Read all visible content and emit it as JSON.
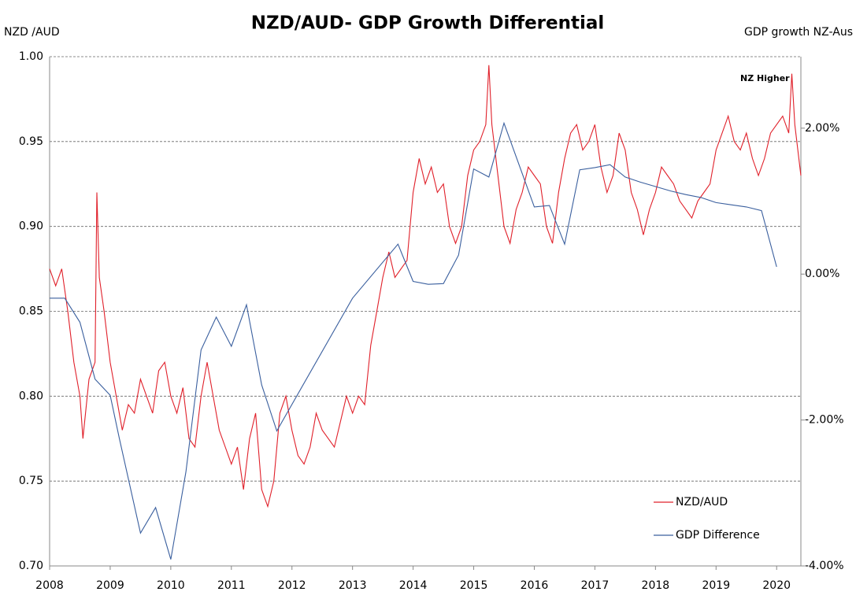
{
  "chart_data": {
    "type": "line",
    "title": "NZD/AUD- GDP Growth Differential",
    "y_label": "NZD /AUD",
    "y2_label": "GDP growth NZ-Aus",
    "annotation": "NZ Higher",
    "xlim": [
      2008,
      2020.4
    ],
    "xticks": [
      2008,
      2009,
      2010,
      2011,
      2012,
      2013,
      2014,
      2015,
      2016,
      2017,
      2018,
      2019,
      2020
    ],
    "ylim": [
      0.7,
      1.0
    ],
    "yticks": [
      {
        "value": 0.7,
        "label": "0.70"
      },
      {
        "value": 0.75,
        "label": "0.75"
      },
      {
        "value": 0.8,
        "label": "0.80"
      },
      {
        "value": 0.85,
        "label": "0.85"
      },
      {
        "value": 0.9,
        "label": "0.90"
      },
      {
        "value": 0.95,
        "label": "0.95"
      },
      {
        "value": 1.0,
        "label": "1.00"
      }
    ],
    "y2lim": [
      -4,
      2.98
    ],
    "y2ticks": [
      {
        "value": -4,
        "label": "-4.00%"
      },
      {
        "value": -2,
        "label": "-2.00%"
      },
      {
        "value": 0,
        "label": "0.00%"
      },
      {
        "value": 2,
        "label": "2.00%"
      }
    ],
    "grid": true,
    "legend": "lower right",
    "series": [
      {
        "name": "NZD/AUD",
        "color": "#e0202a",
        "x": [
          2008.0,
          2008.1,
          2008.2,
          2008.3,
          2008.4,
          2008.5,
          2008.55,
          2008.65,
          2008.75,
          2008.78,
          2008.82,
          2008.9,
          2009.0,
          2009.1,
          2009.2,
          2009.3,
          2009.4,
          2009.5,
          2009.6,
          2009.7,
          2009.8,
          2009.9,
          2010.0,
          2010.1,
          2010.2,
          2010.3,
          2010.4,
          2010.5,
          2010.6,
          2010.7,
          2010.8,
          2010.9,
          2011.0,
          2011.1,
          2011.2,
          2011.3,
          2011.4,
          2011.5,
          2011.6,
          2011.7,
          2011.8,
          2011.9,
          2012.0,
          2012.1,
          2012.2,
          2012.3,
          2012.4,
          2012.5,
          2012.6,
          2012.7,
          2012.8,
          2012.9,
          2013.0,
          2013.1,
          2013.2,
          2013.3,
          2013.4,
          2013.5,
          2013.6,
          2013.7,
          2013.8,
          2013.9,
          2014.0,
          2014.1,
          2014.2,
          2014.3,
          2014.4,
          2014.5,
          2014.6,
          2014.7,
          2014.8,
          2014.9,
          2015.0,
          2015.1,
          2015.2,
          2015.25,
          2015.3,
          2015.4,
          2015.5,
          2015.6,
          2015.7,
          2015.8,
          2015.9,
          2016.0,
          2016.1,
          2016.2,
          2016.3,
          2016.4,
          2016.5,
          2016.6,
          2016.7,
          2016.8,
          2016.9,
          2017.0,
          2017.1,
          2017.2,
          2017.3,
          2017.4,
          2017.5,
          2017.6,
          2017.7,
          2017.8,
          2017.9,
          2018.0,
          2018.1,
          2018.2,
          2018.3,
          2018.4,
          2018.5,
          2018.6,
          2018.7,
          2018.8,
          2018.9,
          2019.0,
          2019.1,
          2019.2,
          2019.3,
          2019.4,
          2019.5,
          2019.6,
          2019.7,
          2019.8,
          2019.9,
          2020.0,
          2020.1,
          2020.2,
          2020.25,
          2020.3,
          2020.4
        ],
        "values": [
          0.875,
          0.865,
          0.875,
          0.85,
          0.82,
          0.8,
          0.775,
          0.81,
          0.82,
          0.92,
          0.87,
          0.85,
          0.82,
          0.8,
          0.78,
          0.795,
          0.79,
          0.81,
          0.8,
          0.79,
          0.815,
          0.82,
          0.8,
          0.79,
          0.805,
          0.775,
          0.77,
          0.8,
          0.82,
          0.8,
          0.78,
          0.77,
          0.76,
          0.77,
          0.745,
          0.775,
          0.79,
          0.745,
          0.735,
          0.75,
          0.79,
          0.8,
          0.78,
          0.765,
          0.76,
          0.77,
          0.79,
          0.78,
          0.775,
          0.77,
          0.785,
          0.8,
          0.79,
          0.8,
          0.795,
          0.83,
          0.85,
          0.87,
          0.885,
          0.87,
          0.875,
          0.88,
          0.92,
          0.94,
          0.925,
          0.935,
          0.92,
          0.925,
          0.9,
          0.89,
          0.9,
          0.93,
          0.945,
          0.95,
          0.96,
          0.995,
          0.96,
          0.93,
          0.9,
          0.89,
          0.91,
          0.92,
          0.935,
          0.93,
          0.925,
          0.9,
          0.89,
          0.92,
          0.94,
          0.955,
          0.96,
          0.945,
          0.95,
          0.96,
          0.935,
          0.92,
          0.93,
          0.955,
          0.945,
          0.92,
          0.91,
          0.895,
          0.91,
          0.92,
          0.935,
          0.93,
          0.925,
          0.915,
          0.91,
          0.905,
          0.915,
          0.92,
          0.925,
          0.945,
          0.955,
          0.965,
          0.95,
          0.945,
          0.955,
          0.94,
          0.93,
          0.94,
          0.955,
          0.96,
          0.965,
          0.955,
          0.99,
          0.96,
          0.93
        ]
      },
      {
        "name": "GDP Difference",
        "color": "#3a5f9e",
        "axis": "y2",
        "x": [
          2008.0,
          2008.25,
          2008.5,
          2008.75,
          2009.0,
          2009.15,
          2009.5,
          2009.75,
          2010.0,
          2010.25,
          2010.5,
          2010.75,
          2011.0,
          2011.25,
          2011.5,
          2011.75,
          2013.0,
          2013.75,
          2014.0,
          2014.25,
          2014.5,
          2014.75,
          2015.0,
          2015.25,
          2015.5,
          2016.0,
          2016.25,
          2016.5,
          2016.75,
          2017.0,
          2017.25,
          2017.5,
          2017.75,
          2018.0,
          2018.25,
          2018.5,
          2018.75,
          2019.0,
          2019.25,
          2019.5,
          2019.75,
          2020.0
        ],
        "values": [
          -0.33,
          -0.33,
          -0.66,
          -1.44,
          -1.66,
          -2.25,
          -3.55,
          -3.2,
          -3.91,
          -2.71,
          -1.04,
          -0.59,
          -0.99,
          -0.42,
          -1.52,
          -2.15,
          -0.33,
          0.41,
          -0.1,
          -0.14,
          -0.13,
          0.26,
          1.44,
          1.33,
          2.07,
          0.92,
          0.94,
          0.41,
          1.43,
          1.46,
          1.5,
          1.33,
          1.26,
          1.2,
          1.14,
          1.09,
          1.05,
          0.98,
          0.95,
          0.92,
          0.87,
          0.1
        ]
      }
    ]
  }
}
